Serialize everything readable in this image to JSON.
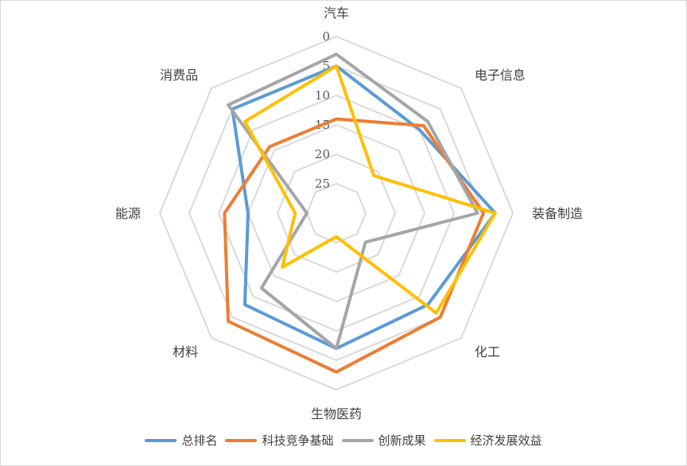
{
  "chart_data": {
    "type": "radar",
    "categories": [
      "汽车",
      "电子信息",
      "装备制造",
      "化工",
      "生物医药",
      "材料",
      "能源",
      "消费品"
    ],
    "r_ticks": [
      0,
      5,
      10,
      15,
      20,
      25
    ],
    "r_range": [
      0,
      30
    ],
    "r_reversed": true,
    "grid": true,
    "legend_position": "bottom",
    "series": [
      {
        "name": "总排名",
        "color": "#5b9bd5",
        "values": [
          5,
          10,
          3,
          8,
          7,
          8,
          15,
          5
        ]
      },
      {
        "name": "科技竞争基础",
        "color": "#ed7d31",
        "values": [
          14,
          9,
          5,
          5,
          3,
          4,
          11,
          14
        ]
      },
      {
        "name": "创新成果",
        "color": "#a5a5a5",
        "values": [
          3,
          8,
          6,
          23,
          7,
          12,
          25,
          4
        ]
      },
      {
        "name": "经济发展效益",
        "color": "#ffc000",
        "values": [
          5,
          21,
          3,
          6,
          26,
          17,
          23,
          8
        ]
      }
    ]
  }
}
